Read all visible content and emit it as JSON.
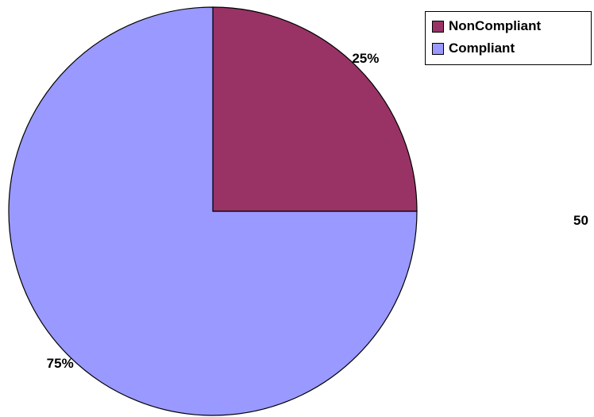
{
  "chart_data": {
    "type": "pie",
    "title": "",
    "slices": [
      {
        "label": "NonCompliant",
        "value": 25,
        "display": "25%",
        "color": "#993366"
      },
      {
        "label": "Compliant",
        "value": 75,
        "display": "75%",
        "color": "#9999FF"
      }
    ],
    "legend_position": "top-right",
    "side_value": "50"
  }
}
